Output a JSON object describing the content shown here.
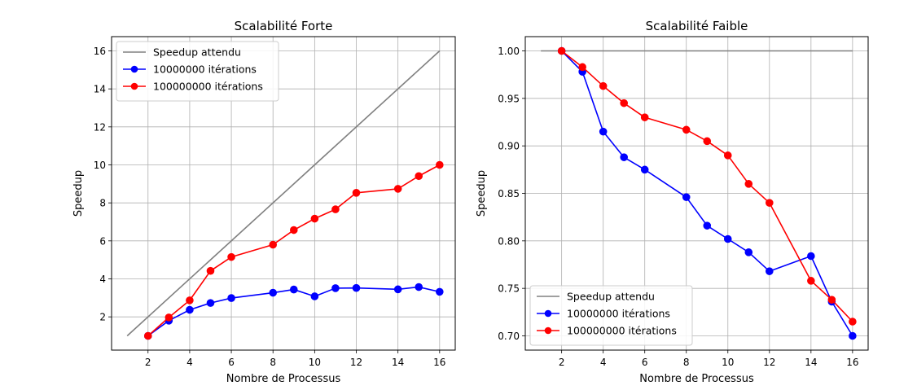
{
  "chart_data": [
    {
      "type": "line",
      "title": "Scalabilité Forte",
      "xlabel": "Nombre de Processus",
      "ylabel": "Speedup",
      "xlim": [
        0.25,
        16.75
      ],
      "ylim": [
        0.25,
        16.75
      ],
      "xticks": [
        2,
        4,
        6,
        8,
        10,
        12,
        14,
        16
      ],
      "yticks": [
        2,
        4,
        6,
        8,
        10,
        12,
        14,
        16
      ],
      "ytick_labels": [
        "2",
        "4",
        "6",
        "8",
        "10",
        "12",
        "14",
        "16"
      ],
      "grid": true,
      "legend_position": "upper-left",
      "series": [
        {
          "name": "Speedup attendu",
          "color": "#808080",
          "marker": false,
          "x": [
            1,
            16
          ],
          "y": [
            1,
            16
          ]
        },
        {
          "name": "10000000 itérations",
          "color": "#0000ff",
          "marker": true,
          "x": [
            2,
            3,
            4,
            5,
            6,
            8,
            9,
            10,
            11,
            12,
            14,
            15,
            16
          ],
          "y": [
            1.0,
            1.8,
            2.37,
            2.73,
            2.99,
            3.27,
            3.44,
            3.08,
            3.51,
            3.52,
            3.45,
            3.57,
            3.32
          ]
        },
        {
          "name": "100000000 itérations",
          "color": "#ff0000",
          "marker": true,
          "x": [
            2,
            3,
            4,
            5,
            6,
            8,
            9,
            10,
            11,
            12,
            14,
            15,
            16
          ],
          "y": [
            1.0,
            1.97,
            2.87,
            4.42,
            5.15,
            5.8,
            6.57,
            7.17,
            7.66,
            8.53,
            8.74,
            9.41,
            10.0
          ]
        }
      ]
    },
    {
      "type": "line",
      "title": "Scalabilité Faible",
      "xlabel": "Nombre de Processus",
      "ylabel": "Speedup",
      "xlim": [
        0.25,
        16.75
      ],
      "ylim": [
        0.685,
        1.015
      ],
      "xticks": [
        2,
        4,
        6,
        8,
        10,
        12,
        14,
        16
      ],
      "yticks": [
        0.7,
        0.75,
        0.8,
        0.85,
        0.9,
        0.95,
        1.0
      ],
      "ytick_labels": [
        "0.70",
        "0.75",
        "0.80",
        "0.85",
        "0.90",
        "0.95",
        "1.00"
      ],
      "grid": true,
      "legend_position": "lower-left",
      "series": [
        {
          "name": "Speedup attendu",
          "color": "#808080",
          "marker": false,
          "x": [
            1,
            16
          ],
          "y": [
            1.0,
            1.0
          ]
        },
        {
          "name": "10000000 itérations",
          "color": "#0000ff",
          "marker": true,
          "x": [
            2,
            3,
            4,
            5,
            6,
            8,
            9,
            10,
            11,
            12,
            14,
            15,
            16
          ],
          "y": [
            1.0,
            0.978,
            0.915,
            0.888,
            0.875,
            0.846,
            0.816,
            0.802,
            0.788,
            0.768,
            0.784,
            0.736,
            0.7
          ]
        },
        {
          "name": "100000000 itérations",
          "color": "#ff0000",
          "marker": true,
          "x": [
            2,
            3,
            4,
            5,
            6,
            8,
            9,
            10,
            11,
            12,
            14,
            15,
            16
          ],
          "y": [
            1.0,
            0.983,
            0.963,
            0.945,
            0.93,
            0.917,
            0.905,
            0.89,
            0.86,
            0.84,
            0.758,
            0.738,
            0.715
          ]
        }
      ]
    }
  ]
}
